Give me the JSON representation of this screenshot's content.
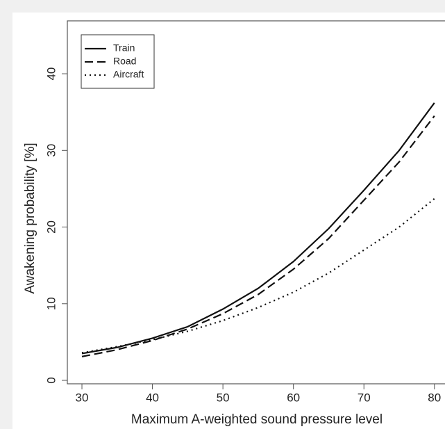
{
  "chart_data": {
    "type": "line",
    "xlabel": "Maximum A-weighted sound pressure level",
    "ylabel": "Awakening probability [%]",
    "x": [
      30,
      35,
      40,
      45,
      50,
      55,
      60,
      65,
      70,
      75,
      80
    ],
    "series": [
      {
        "name": "Train",
        "color": "#111111",
        "linestyle": "solid",
        "values": [
          3.5,
          4.3,
          5.5,
          7.0,
          9.3,
          12.0,
          15.5,
          19.8,
          24.8,
          30.0,
          36.2
        ]
      },
      {
        "name": "Road",
        "color": "#111111",
        "linestyle": "dashed",
        "values": [
          3.1,
          4.0,
          5.2,
          6.7,
          8.7,
          11.2,
          14.5,
          18.5,
          23.5,
          28.5,
          34.5
        ]
      },
      {
        "name": "Aircraft",
        "color": "#111111",
        "linestyle": "dotted",
        "values": [
          3.6,
          4.4,
          5.3,
          6.4,
          7.8,
          9.5,
          11.5,
          14.0,
          17.0,
          20.0,
          23.7
        ]
      }
    ],
    "xlim": [
      27.93,
      81.5
    ],
    "ylim": [
      -0.45,
      46.9
    ],
    "xticks": [
      30,
      40,
      50,
      60,
      70,
      80
    ],
    "yticks": [
      0,
      10,
      20,
      30,
      40
    ],
    "legend": "top-left"
  }
}
